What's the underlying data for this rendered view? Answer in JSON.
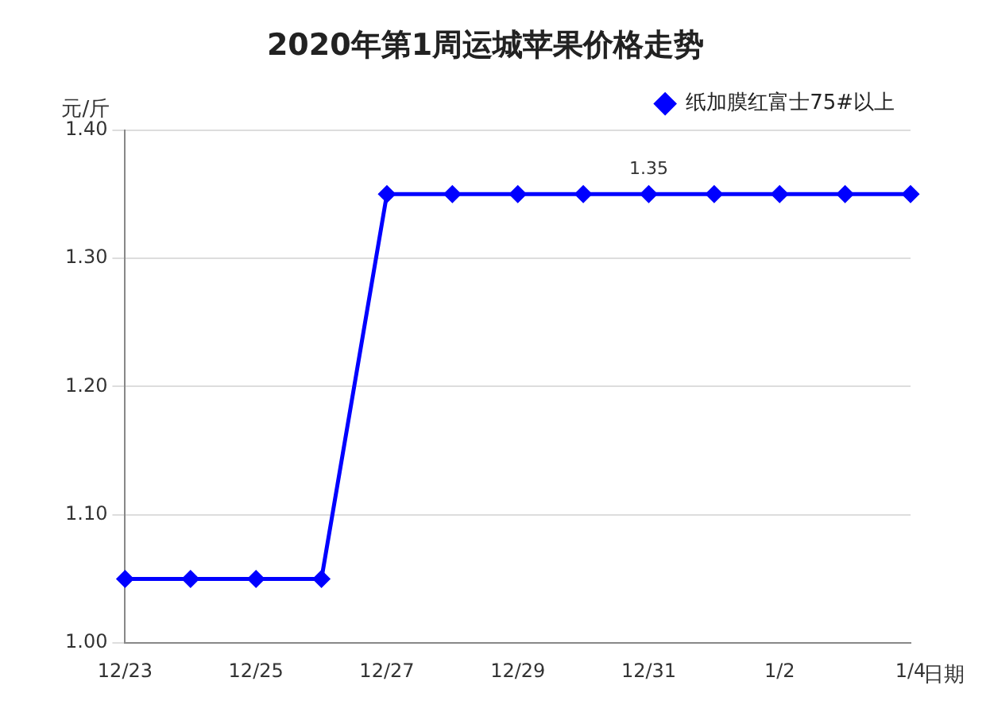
{
  "chart_data": {
    "type": "line",
    "title": "2020年第1周运城苹果价格走势",
    "xlabel": "日期",
    "ylabel": "元/斤",
    "categories": [
      "12/23",
      null,
      "12/25",
      null,
      "12/27",
      null,
      "12/29",
      null,
      "12/31",
      null,
      "1/2",
      null,
      "1/4"
    ],
    "series": [
      {
        "name": "纸加膜红富士75#以上",
        "color": "#0000ff",
        "values": [
          1.05,
          1.05,
          1.05,
          1.05,
          1.35,
          1.35,
          1.35,
          1.35,
          1.35,
          1.35,
          1.35,
          1.35,
          1.35
        ],
        "value_labels": [
          null,
          null,
          null,
          null,
          null,
          null,
          null,
          null,
          "1.35",
          null,
          null,
          null,
          null
        ]
      }
    ],
    "ylim": [
      1.0,
      1.4
    ],
    "yticks": [
      {
        "value": 1.0,
        "label": "1.00"
      },
      {
        "value": 1.1,
        "label": "1.10"
      },
      {
        "value": 1.2,
        "label": "1.20"
      },
      {
        "value": 1.3,
        "label": "1.30"
      },
      {
        "value": 1.4,
        "label": "1.40"
      }
    ],
    "grid": "y",
    "legend": "top right",
    "marker": "diamond",
    "line_style": "solid"
  }
}
